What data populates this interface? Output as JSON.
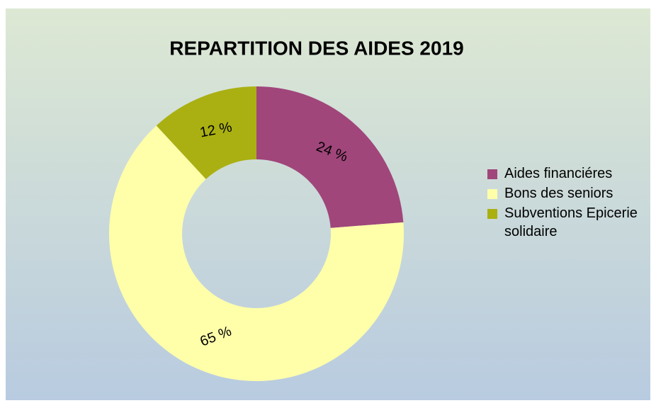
{
  "chart_data": {
    "type": "donut",
    "title": "REPARTITION DES AIDES 2019",
    "categories": [
      "Aides financiéres",
      "Bons des seniors",
      "Subventions Epicerie solidaire"
    ],
    "values": [
      24,
      65,
      12
    ],
    "value_labels": [
      "24 %",
      "65 %",
      "12 %"
    ],
    "colors": [
      "#a0467b",
      "#ffffaa",
      "#aab012"
    ],
    "legend": "right"
  }
}
